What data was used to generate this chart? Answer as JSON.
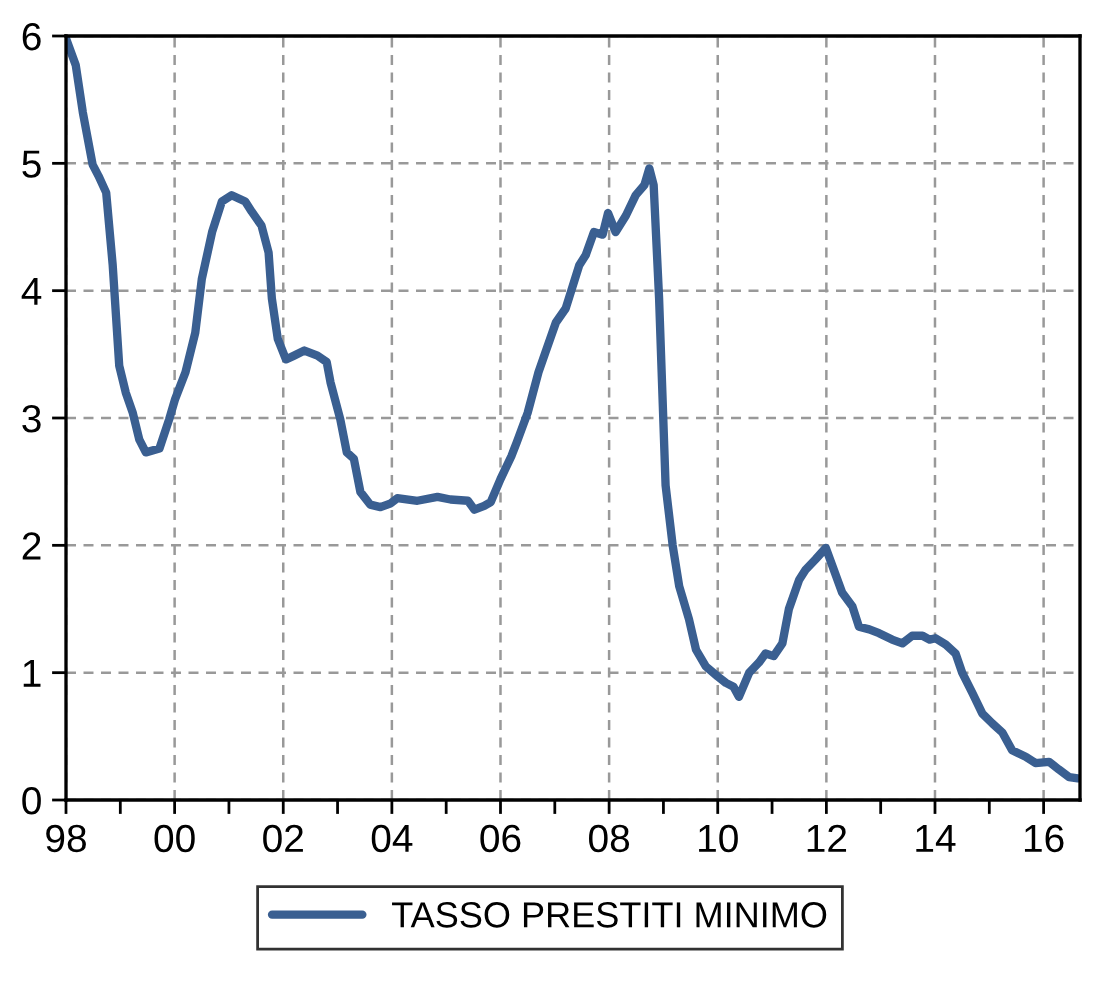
{
  "chart_data": {
    "type": "line",
    "legend": "bottom",
    "grid": true,
    "line_style": "solid",
    "marker": "none",
    "xlim": [
      1998,
      2016.67
    ],
    "ylim": [
      0,
      6
    ],
    "yticks": [
      0,
      1,
      2,
      3,
      4,
      5,
      6
    ],
    "xticks": [
      {
        "value": 1998,
        "label": "98"
      },
      {
        "value": 1999,
        "label": null
      },
      {
        "value": 2000,
        "label": "00"
      },
      {
        "value": 2001,
        "label": null
      },
      {
        "value": 2002,
        "label": "02"
      },
      {
        "value": 2003,
        "label": null
      },
      {
        "value": 2004,
        "label": "04"
      },
      {
        "value": 2005,
        "label": null
      },
      {
        "value": 2006,
        "label": "06"
      },
      {
        "value": 2007,
        "label": null
      },
      {
        "value": 2008,
        "label": "08"
      },
      {
        "value": 2009,
        "label": null
      },
      {
        "value": 2010,
        "label": "10"
      },
      {
        "value": 2011,
        "label": null
      },
      {
        "value": 2012,
        "label": "12"
      },
      {
        "value": 2013,
        "label": null
      },
      {
        "value": 2014,
        "label": "14"
      },
      {
        "value": 2015,
        "label": null
      },
      {
        "value": 2016,
        "label": "16"
      }
    ],
    "series": [
      {
        "name": "TASSO PRESTITI MINIMO",
        "color": "#3a5f91",
        "x": [
          1998.0,
          1998.18,
          1998.31,
          1998.49,
          1998.6,
          1998.74,
          1998.86,
          1998.98,
          1999.1,
          1999.23,
          1999.35,
          1999.47,
          1999.72,
          1999.9,
          2000.01,
          2000.2,
          2000.38,
          2000.5,
          2000.69,
          2000.87,
          2001.05,
          2001.3,
          2001.42,
          2001.6,
          2001.73,
          2001.79,
          2001.9,
          2002.05,
          2002.2,
          2002.39,
          2002.63,
          2002.8,
          2002.87,
          2003.05,
          2003.17,
          2003.3,
          2003.42,
          2003.6,
          2003.79,
          2003.98,
          2004.1,
          2004.47,
          2004.84,
          2005.08,
          2005.4,
          2005.52,
          2005.7,
          2005.82,
          2006.0,
          2006.2,
          2006.3,
          2006.5,
          2006.7,
          2006.83,
          2007.02,
          2007.2,
          2007.45,
          2007.57,
          2007.72,
          2007.88,
          2007.98,
          2008.12,
          2008.31,
          2008.49,
          2008.65,
          2008.74,
          2008.82,
          2008.92,
          2009.04,
          2009.17,
          2009.29,
          2009.47,
          2009.6,
          2009.78,
          2010.0,
          2010.15,
          2010.29,
          2010.39,
          2010.58,
          2010.76,
          2010.88,
          2011.03,
          2011.19,
          2011.31,
          2011.5,
          2011.62,
          2011.8,
          2011.99,
          2012.11,
          2012.29,
          2012.48,
          2012.6,
          2012.79,
          2012.97,
          2013.21,
          2013.4,
          2013.58,
          2013.77,
          2013.9,
          2014.01,
          2014.2,
          2014.38,
          2014.5,
          2014.69,
          2014.87,
          2015.06,
          2015.24,
          2015.42,
          2015.67,
          2015.85,
          2016.1,
          2016.28,
          2016.47,
          2016.63
        ],
        "values": [
          5.98,
          5.77,
          5.4,
          4.99,
          4.9,
          4.77,
          4.2,
          3.41,
          3.2,
          3.04,
          2.83,
          2.73,
          2.76,
          2.99,
          3.15,
          3.36,
          3.67,
          4.09,
          4.46,
          4.7,
          4.75,
          4.7,
          4.62,
          4.51,
          4.3,
          3.94,
          3.62,
          3.46,
          3.49,
          3.53,
          3.49,
          3.44,
          3.28,
          2.99,
          2.73,
          2.68,
          2.42,
          2.32,
          2.3,
          2.33,
          2.37,
          2.35,
          2.38,
          2.36,
          2.35,
          2.28,
          2.31,
          2.34,
          2.52,
          2.7,
          2.81,
          3.04,
          3.36,
          3.52,
          3.75,
          3.86,
          4.2,
          4.28,
          4.46,
          4.44,
          4.61,
          4.46,
          4.59,
          4.75,
          4.83,
          4.96,
          4.83,
          3.94,
          2.47,
          2.0,
          1.68,
          1.42,
          1.18,
          1.05,
          0.97,
          0.92,
          0.89,
          0.81,
          1.0,
          1.08,
          1.15,
          1.13,
          1.23,
          1.5,
          1.73,
          1.81,
          1.89,
          1.98,
          1.84,
          1.63,
          1.52,
          1.36,
          1.34,
          1.31,
          1.26,
          1.23,
          1.29,
          1.29,
          1.26,
          1.27,
          1.22,
          1.15,
          1.0,
          0.84,
          0.68,
          0.6,
          0.53,
          0.39,
          0.34,
          0.29,
          0.3,
          0.24,
          0.18,
          0.17
        ]
      }
    ]
  }
}
